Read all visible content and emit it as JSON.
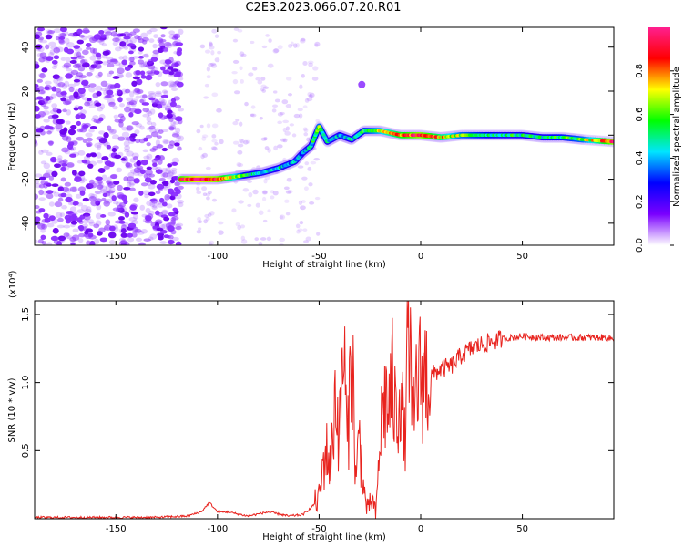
{
  "title": "C2E3.2023.066.07.20.R01",
  "chart_data": [
    {
      "type": "heatmap",
      "xlabel": "Height of straight line (km)",
      "ylabel": "Frequency (Hz)",
      "xlim": [
        -190,
        95
      ],
      "ylim": [
        -50,
        49
      ],
      "x_ticks": [
        -150,
        -100,
        -50,
        0,
        50
      ],
      "x_tick_labels": [
        "-150",
        "-100",
        "-50",
        "0",
        "50"
      ],
      "y_ticks": [
        -40,
        -20,
        0,
        20,
        40
      ],
      "y_tick_labels": [
        "-40",
        "-20",
        "0",
        "20",
        "40"
      ],
      "colorbar": {
        "label": "Normalized spectral amplitude",
        "range": [
          0,
          1
        ],
        "ticks": [
          0.0,
          0.2,
          0.4,
          0.6,
          0.8
        ],
        "tick_labels": [
          "0.0",
          "0.2",
          "0.4",
          "0.6",
          "0.8"
        ],
        "colormap": [
          "#ffffff",
          "#7a00ff",
          "#0000ff",
          "#00e5ff",
          "#00ff00",
          "#ffff00",
          "#ff0000",
          "#ff1f8f"
        ]
      },
      "ridge": {
        "x": [
          -118,
          -110,
          -100,
          -92,
          -85,
          -78,
          -70,
          -62,
          -58,
          -54,
          -50,
          -46,
          -40,
          -34,
          -28,
          -20,
          -10,
          0,
          10,
          20,
          30,
          40,
          50,
          60,
          70,
          80,
          95
        ],
        "y": [
          -20,
          -20,
          -20,
          -19,
          -18,
          -17,
          -15,
          -12,
          -8,
          -5,
          4,
          -3,
          0,
          -2,
          2,
          2,
          0,
          0,
          -1,
          0,
          0,
          0,
          0,
          -1,
          -1,
          -2,
          -3
        ],
        "amplitude": [
          0.85,
          0.95,
          0.9,
          0.7,
          0.5,
          0.45,
          0.45,
          0.4,
          0.4,
          0.45,
          0.6,
          0.45,
          0.4,
          0.45,
          0.55,
          0.65,
          0.8,
          0.9,
          0.75,
          0.6,
          0.55,
          0.5,
          0.5,
          0.5,
          0.55,
          0.6,
          0.9
        ]
      },
      "noise_region": {
        "x_range": [
          -190,
          -118
        ],
        "level": "high"
      }
    },
    {
      "type": "line",
      "xlabel": "Height of straight line (km)",
      "ylabel": "SNR (10 * v/v)",
      "y_multiplier_label": "(x10⁴)",
      "xlim": [
        -190,
        95
      ],
      "ylim": [
        0,
        1.6
      ],
      "x_ticks": [
        -150,
        -100,
        -50,
        0,
        50
      ],
      "x_tick_labels": [
        "-150",
        "-100",
        "-50",
        "0",
        "50"
      ],
      "y_ticks": [
        0.5,
        1.0,
        1.5
      ],
      "y_tick_labels": [
        "0.5",
        "1.0",
        "1.5"
      ],
      "color": "#e8231e",
      "x": [
        -190,
        -160,
        -130,
        -115,
        -108,
        -104,
        -100,
        -95,
        -85,
        -75,
        -65,
        -58,
        -54,
        -50,
        -47,
        -44,
        -42,
        -40,
        -38,
        -36,
        -34,
        -32,
        -30,
        -28,
        -26,
        -24,
        -22,
        -20,
        -18,
        -16,
        -14,
        -12,
        -10,
        -8,
        -6,
        -4,
        -2,
        0,
        5,
        10,
        15,
        20,
        25,
        30,
        35,
        40,
        45,
        50,
        60,
        70,
        80,
        90,
        95
      ],
      "y": [
        0.01,
        0.01,
        0.01,
        0.02,
        0.05,
        0.12,
        0.05,
        0.05,
        0.02,
        0.05,
        0.02,
        0.03,
        0.08,
        0.15,
        0.5,
        0.4,
        0.95,
        0.6,
        1.3,
        0.5,
        1.4,
        0.3,
        0.6,
        0.2,
        0.05,
        0.15,
        0.02,
        0.6,
        0.9,
        0.8,
        1.0,
        0.7,
        1.05,
        0.5,
        1.6,
        0.6,
        1.0,
        1.05,
        1.05,
        1.1,
        1.12,
        1.2,
        1.25,
        1.28,
        1.3,
        1.32,
        1.33,
        1.34,
        1.33,
        1.33,
        1.33,
        1.33,
        1.32
      ]
    }
  ]
}
